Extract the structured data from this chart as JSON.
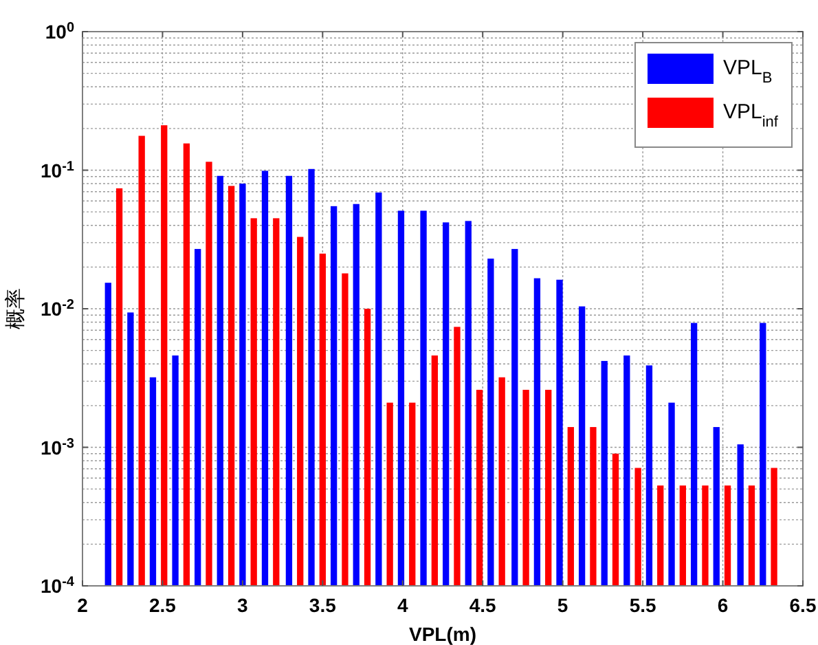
{
  "chart_data": {
    "type": "bar",
    "xlabel": "VPL(m)",
    "ylabel": "概率",
    "log": "y",
    "grid": true,
    "legend": "top right",
    "xlim": [
      2,
      6.5
    ],
    "xticks": [
      2,
      2.5,
      3,
      3.5,
      4,
      4.5,
      5,
      5.5,
      6,
      6.5
    ],
    "ylim": [
      0.0001,
      1
    ],
    "yticks": [
      {
        "value": 0.0001,
        "label": "10$^{-4}$"
      },
      {
        "value": 0.001,
        "label": "10$^{-3}$"
      },
      {
        "value": 0.01,
        "label": "10$^{-2}$"
      },
      {
        "value": 0.1,
        "label": "10$^{-1}$"
      },
      {
        "value": 1,
        "label": "10$^{0}$"
      }
    ],
    "series": [
      {
        "name": "VPL$_{B}$",
        "color": "#0000ff",
        "x": [
          2.16,
          2.3,
          2.44,
          2.58,
          2.72,
          2.86,
          3.0,
          3.14,
          3.29,
          3.43,
          3.57,
          3.71,
          3.85,
          3.99,
          4.13,
          4.27,
          4.41,
          4.55,
          4.7,
          4.84,
          4.98,
          5.12,
          5.26,
          5.4,
          5.54,
          5.68,
          5.82,
          5.96,
          6.11,
          6.25
        ],
        "values": [
          0.0154,
          0.0094,
          0.0032,
          0.0046,
          0.027,
          0.091,
          0.08,
          0.099,
          0.091,
          0.102,
          0.055,
          0.057,
          0.069,
          0.051,
          0.051,
          0.042,
          0.043,
          0.023,
          0.027,
          0.0166,
          0.0162,
          0.0104,
          0.0042,
          0.0046,
          0.0039,
          0.0021,
          0.0079,
          0.0014,
          0.00105,
          0.0079
        ]
      },
      {
        "name": "VPL$_{inf}$",
        "color": "#ff0000",
        "x": [
          2.23,
          2.37,
          2.51,
          2.65,
          2.79,
          2.93,
          3.07,
          3.21,
          3.36,
          3.5,
          3.64,
          3.78,
          3.92,
          4.06,
          4.2,
          4.34,
          4.48,
          4.62,
          4.77,
          4.91,
          5.05,
          5.19,
          5.33,
          5.47,
          5.61,
          5.75,
          5.89,
          6.03,
          6.18,
          6.32
        ],
        "values": [
          0.074,
          0.177,
          0.211,
          0.156,
          0.115,
          0.077,
          0.045,
          0.045,
          0.033,
          0.025,
          0.018,
          0.01,
          0.0021,
          0.0021,
          0.0046,
          0.0074,
          0.0026,
          0.0032,
          0.0026,
          0.0026,
          0.0014,
          0.0014,
          0.0009,
          0.00071,
          0.00053,
          0.00053,
          0.00053,
          0.00053,
          0.00053,
          0.00071
        ]
      }
    ]
  }
}
